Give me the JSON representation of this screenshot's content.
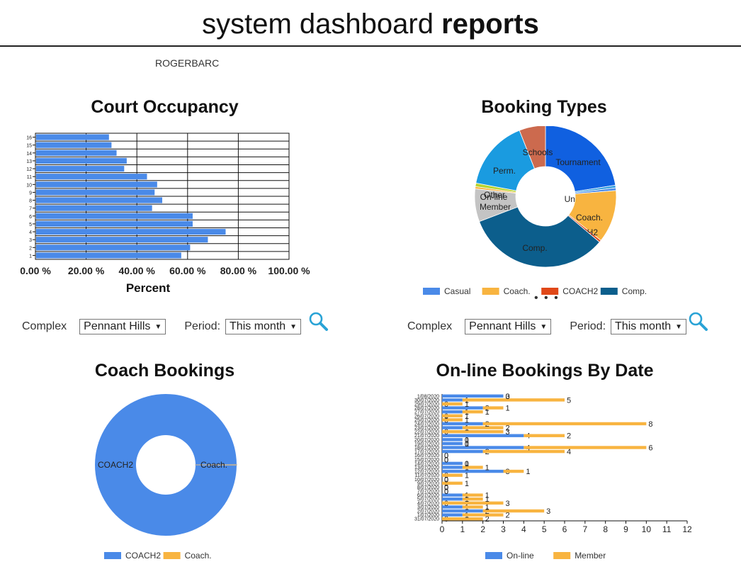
{
  "header": {
    "title_light": "system dashboard ",
    "title_bold": "reports",
    "user": "ROGERBARC"
  },
  "court_occupancy": {
    "title": "Court Occupancy",
    "controls": {
      "complex_label": "Complex",
      "complex_value": "Pennant Hills",
      "period_label": "Period:",
      "period_value": "This month",
      "search_icon": "magnifier-icon"
    },
    "chart_data": {
      "type": "bar",
      "orientation": "horizontal",
      "categories": [
        "1",
        "2",
        "3",
        "4",
        "5",
        "6",
        "7",
        "8",
        "9",
        "10",
        "11",
        "12",
        "13",
        "14",
        "15",
        "16"
      ],
      "values": [
        57.5,
        61,
        68,
        75,
        62,
        62,
        46,
        50,
        47,
        48,
        44,
        35,
        36,
        32,
        30,
        29
      ],
      "xlim": [
        0,
        100
      ],
      "xticks": [
        "0.00 %",
        "20.00 %",
        "40.00 %",
        "60.00 %",
        "80.00 %",
        "100.00 %"
      ],
      "xlabel": "Percent",
      "color": "#4a8ae8",
      "grid": true
    }
  },
  "booking_types": {
    "title": "Booking Types",
    "controls": {
      "complex_label": "Complex",
      "complex_value": "Pennant Hills",
      "period_label": "Period:",
      "period_value": "This month",
      "search_icon": "magnifier-icon"
    },
    "chart_data": {
      "type": "pie",
      "donut": true,
      "slices": [
        {
          "label": "Tournament",
          "value": 22.5,
          "color": "#1060e0"
        },
        {
          "label": "Unavailable",
          "value": 0.6,
          "color": "#39a0e0"
        },
        {
          "label": "Casual",
          "value": 0.6,
          "color": "#4a8ae8"
        },
        {
          "label": "Coach.",
          "value": 12,
          "color": "#f8b440"
        },
        {
          "label": "COACH2",
          "value": 0.5,
          "color": "#e04818"
        },
        {
          "label": "Comp.",
          "value": 33,
          "color": "#0c5e8c"
        },
        {
          "label": "Member",
          "value": 7.5,
          "color": "#c4c4c4"
        },
        {
          "label": "On-line",
          "value": 0.5,
          "color": "#f8b440"
        },
        {
          "label": "Other",
          "value": 0.8,
          "color": "#b8d430"
        },
        {
          "label": "Perm.",
          "value": 16,
          "color": "#1a9be0"
        },
        {
          "label": "Schools",
          "value": 6,
          "color": "#cc6a4e"
        }
      ],
      "legend": [
        "Casual",
        "Coach.",
        "COACH2",
        "Comp."
      ],
      "legend_position": "bottom",
      "legend_more": "• • •"
    }
  },
  "coach_bookings": {
    "title": "Coach Bookings",
    "chart_data": {
      "type": "pie",
      "donut": true,
      "slices": [
        {
          "label": "COACH2",
          "value": 99.8,
          "color": "#4a8ae8"
        },
        {
          "label": "Coach.",
          "value": 0.2,
          "color": "#f8b440"
        }
      ],
      "legend": [
        "COACH2",
        "Coach."
      ],
      "legend_position": "bottom"
    }
  },
  "online_bookings": {
    "title": "On-line Bookings By Date",
    "chart_data": {
      "type": "bar",
      "orientation": "horizontal",
      "stacked": true,
      "y_labels_from_bottom": [
        "31/07/2020",
        "1/07/2020",
        "2/07/2020",
        "3/07/2020",
        "4/07/2020",
        "5/07/2020",
        "6/07/2020",
        "7/07/2020",
        "8/07/2020",
        "9/07/2020",
        "10/07/2020",
        "11/07/2020",
        "12/07/2020",
        "13/07/2020",
        "14/07/2020",
        "15/07/2020",
        "16/07/2020",
        "17/07/2020",
        "18/07/2020",
        "19/07/2020",
        "20/07/2020",
        "21/07/2020",
        "22/07/2020",
        "23/07/2020",
        "24/07/2020",
        "25/07/2020",
        "26/07/2020",
        "27/07/2020",
        "28/07/2020",
        "29/07/2020",
        "30/07/2020",
        "1/08/2020"
      ],
      "series": [
        {
          "name": "On-line",
          "color": "#4a8ae8",
          "values": [
            0,
            1,
            2,
            1,
            0,
            1,
            1,
            0,
            0,
            0,
            0,
            0,
            3,
            1,
            1,
            0,
            0,
            2,
            4,
            1,
            1,
            4,
            0,
            1,
            2,
            0,
            0,
            1,
            2,
            0,
            1,
            3
          ]
        },
        {
          "name": "Member",
          "color": "#f8b440",
          "values": [
            2,
            2,
            3,
            1,
            3,
            1,
            1,
            0,
            0,
            1,
            0,
            1,
            1,
            1,
            0,
            0,
            0,
            4,
            6,
            0,
            0,
            2,
            3,
            2,
            8,
            1,
            1,
            1,
            1,
            1,
            5,
            0
          ]
        }
      ],
      "xlim": [
        0,
        12
      ],
      "xticks": [
        0,
        1,
        2,
        3,
        4,
        5,
        6,
        7,
        8,
        9,
        10,
        11,
        12
      ],
      "legend": [
        "On-line",
        "Member"
      ],
      "legend_position": "bottom"
    }
  }
}
